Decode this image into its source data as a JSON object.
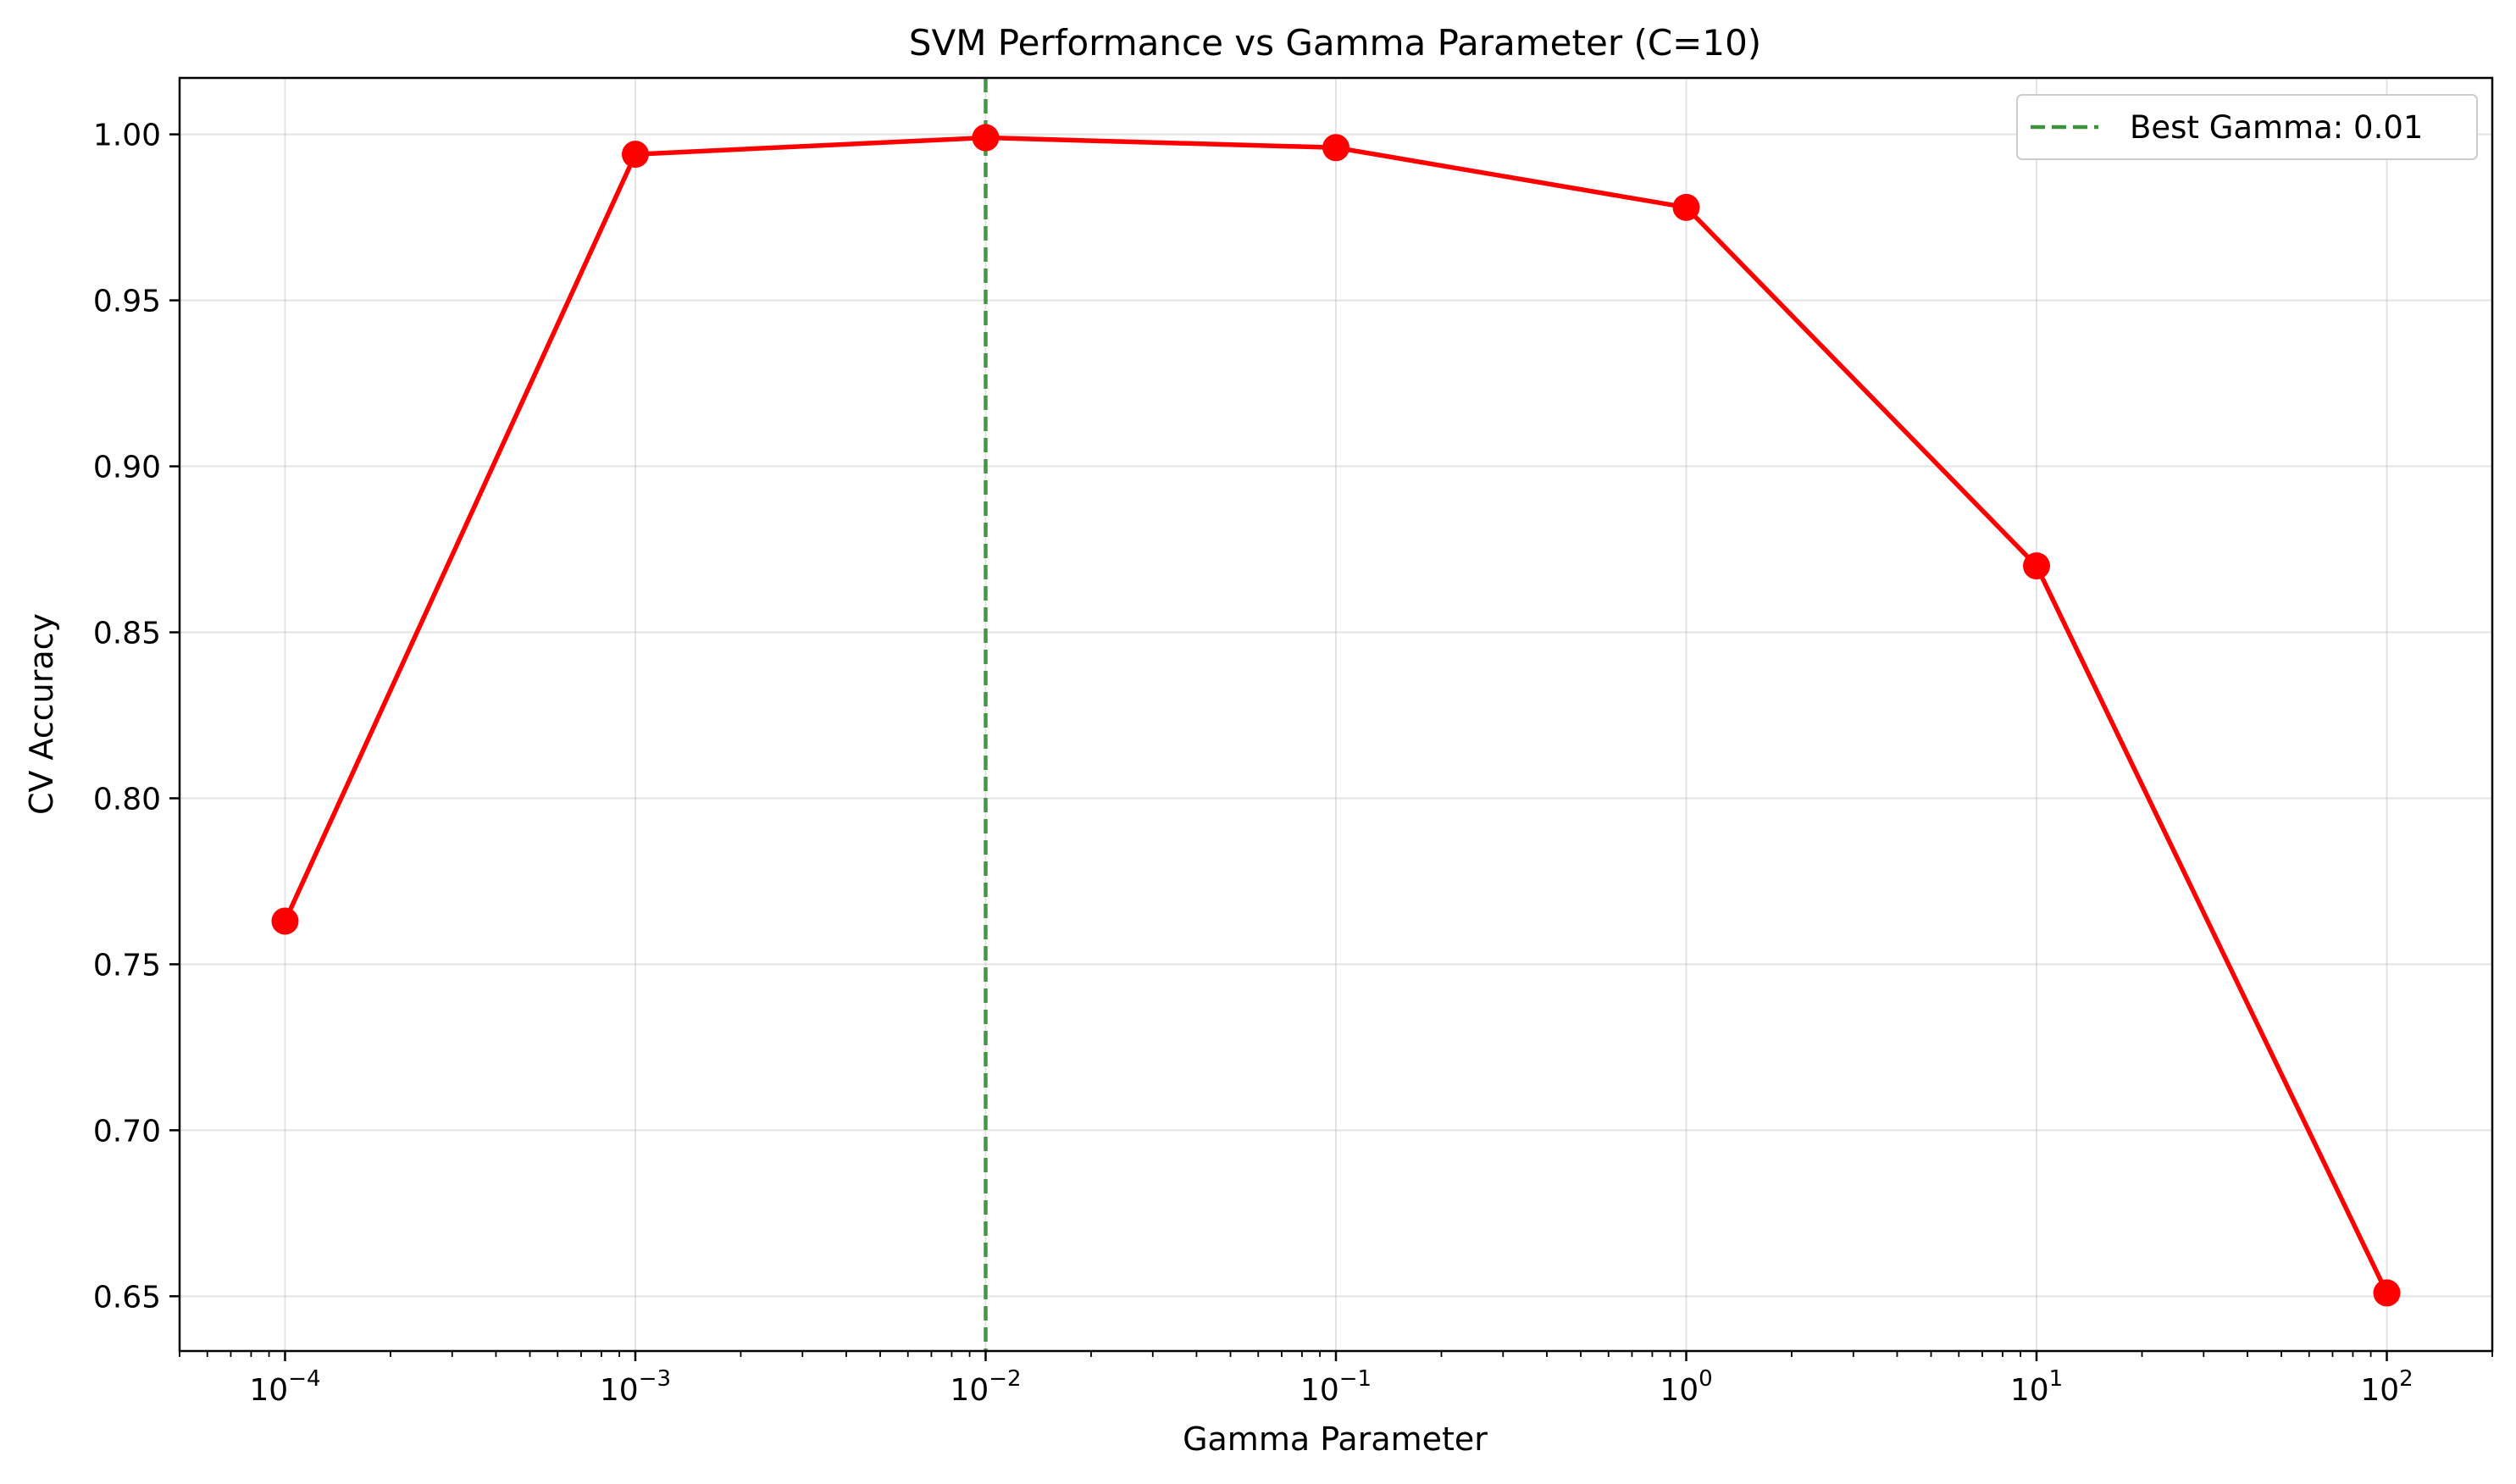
{
  "chart_data": {
    "type": "line",
    "title": "SVM Performance vs Gamma Parameter (C=10)",
    "xlabel": "Gamma Parameter",
    "ylabel": "CV Accuracy",
    "x_scale": "log",
    "x": [
      0.0001,
      0.001,
      0.01,
      0.1,
      1,
      10,
      100
    ],
    "xlim": [
      5e-05,
      200
    ],
    "x_ticks": [
      {
        "value": 0.0001,
        "base": "10",
        "exp": "−4"
      },
      {
        "value": 0.001,
        "base": "10",
        "exp": "−3"
      },
      {
        "value": 0.01,
        "base": "10",
        "exp": "−2"
      },
      {
        "value": 0.1,
        "base": "10",
        "exp": "−1"
      },
      {
        "value": 1,
        "base": "10",
        "exp": "0"
      },
      {
        "value": 10,
        "base": "10",
        "exp": "1"
      },
      {
        "value": 100,
        "base": "10",
        "exp": "2"
      }
    ],
    "ylim": [
      0.6335,
      1.017
    ],
    "y_ticks": [
      0.65,
      0.7,
      0.75,
      0.8,
      0.85,
      0.9,
      0.95,
      1.0
    ],
    "y_tick_labels": [
      "0.65",
      "0.70",
      "0.75",
      "0.80",
      "0.85",
      "0.90",
      "0.95",
      "1.00"
    ],
    "grid": true,
    "series": [
      {
        "values": [
          0.763,
          0.994,
          0.999,
          0.996,
          0.978,
          0.87,
          0.651
        ],
        "color": "#ff0000",
        "marker": "circle"
      }
    ],
    "reference_line": {
      "orientation": "vertical",
      "x": 0.01,
      "style": "dashed",
      "color": "#3a923a",
      "label": "Best Gamma: 0.01"
    },
    "legend": {
      "placement": "top-right",
      "entries": [
        "Best Gamma: 0.01"
      ]
    }
  }
}
